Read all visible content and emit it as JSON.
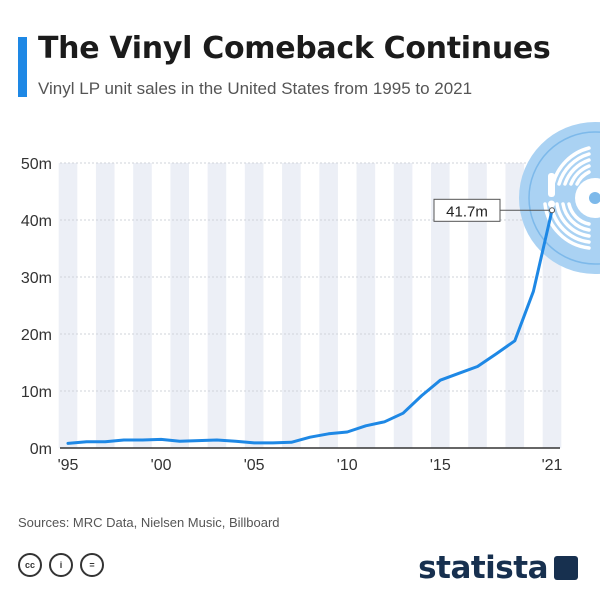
{
  "header": {
    "title": "The Vinyl Comeback Continues",
    "subtitle": "Vinyl LP unit sales in the United States from 1995 to 2021"
  },
  "colors": {
    "accent": "#1e88e5",
    "line": "#1e88e5",
    "band": "#eceff6",
    "text": "#333333",
    "logo": "#17304f"
  },
  "chart_data": {
    "type": "line",
    "x": [
      1995,
      1996,
      1997,
      1998,
      1999,
      2000,
      2001,
      2002,
      2003,
      2004,
      2005,
      2006,
      2007,
      2008,
      2009,
      2010,
      2011,
      2012,
      2013,
      2014,
      2015,
      2016,
      2017,
      2018,
      2019,
      2020,
      2021
    ],
    "series": [
      {
        "values": [
          0.8,
          1.1,
          1.1,
          1.4,
          1.4,
          1.5,
          1.2,
          1.3,
          1.4,
          1.2,
          0.9,
          0.9,
          1.0,
          1.9,
          2.5,
          2.8,
          3.9,
          4.6,
          6.1,
          9.2,
          11.9,
          13.1,
          14.3,
          16.5,
          18.8,
          27.5,
          41.7
        ]
      }
    ],
    "xlim": [
      1995,
      2021
    ],
    "ylim": [
      0,
      50
    ],
    "yticks": [
      0,
      10,
      20,
      30,
      40,
      50
    ],
    "ytick_labels": [
      "0m",
      "10m",
      "20m",
      "30m",
      "40m",
      "50m"
    ],
    "xticks": [
      1995,
      2000,
      2005,
      2010,
      2015,
      2021
    ],
    "xtick_labels": [
      "'95",
      "'00",
      "'05",
      "'10",
      "'15",
      "'21"
    ],
    "annotation": {
      "x": 2021,
      "y": 41.7,
      "label": "41.7m"
    },
    "background": "alternating vertical year bands",
    "legend": "none"
  },
  "footer": {
    "source": "Sources: MRC Data, Nielsen Music, Billboard",
    "license_icons": [
      "creative-commons-icon",
      "attribution-icon",
      "no-derivatives-icon"
    ],
    "license_glyphs": [
      "cc",
      "i",
      "="
    ],
    "brand": "statista"
  }
}
